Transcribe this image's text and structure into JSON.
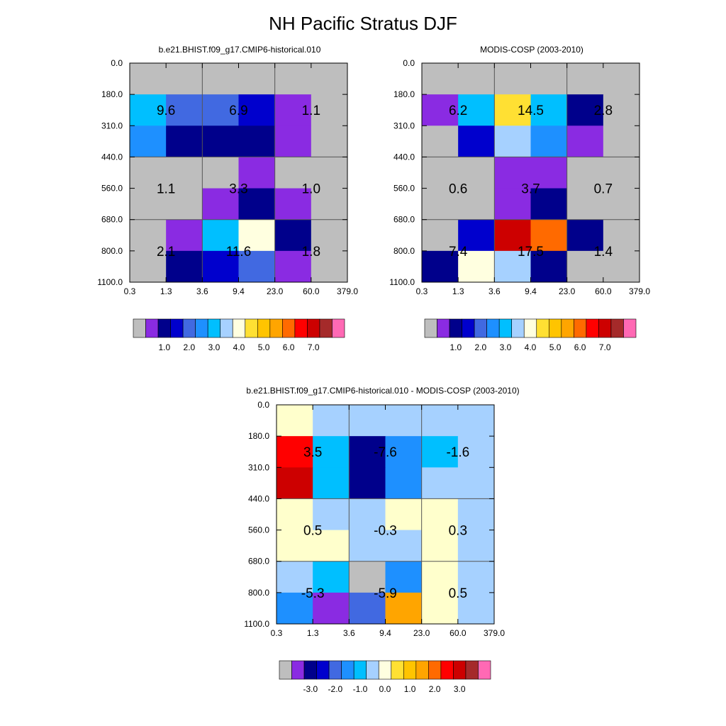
{
  "title": "NH Pacific Stratus DJF",
  "chart_data": [
    {
      "type": "heatmap",
      "title": "b.e21.BHIST.f09_g17.CMIP6-historical.010",
      "x_ticks": [
        "0.3",
        "1.3",
        "3.6",
        "9.4",
        "23.0",
        "60.0",
        "379.0"
      ],
      "y_ticks": [
        "0.0",
        "180.0",
        "310.0",
        "440.0",
        "560.0",
        "680.0",
        "800.0",
        "1100.0"
      ],
      "colors": [
        "#bebebe",
        "#bebebe",
        "#bebebe",
        "#bebebe",
        "#bebebe",
        "#bebebe",
        "#00bfff",
        "#4169e1",
        "#4169e1",
        "#0000cd",
        "#8a2be2",
        "#bebebe",
        "#1e90ff",
        "#00008b",
        "#00008b",
        "#00008b",
        "#8a2be2",
        "#bebebe",
        "#bebebe",
        "#bebebe",
        "#bebebe",
        "#8a2be2",
        "#bebebe",
        "#bebebe",
        "#bebebe",
        "#bebebe",
        "#8a2be2",
        "#00008b",
        "#8a2be2",
        "#bebebe",
        "#bebebe",
        "#8a2be2",
        "#00bfff",
        "#ffffe0",
        "#00008b",
        "#bebebe",
        "#bebebe",
        "#00008b",
        "#0000cd",
        "#4169e1",
        "#8a2be2",
        "#bebebe"
      ],
      "annotations": [
        {
          "row": 1,
          "col": 0,
          "text": "9.6"
        },
        {
          "row": 1,
          "col": 1,
          "text": "6.9"
        },
        {
          "row": 1,
          "col": 2,
          "text": "1.1"
        },
        {
          "row": 2,
          "col": 0,
          "text": "1.1"
        },
        {
          "row": 2,
          "col": 1,
          "text": "3.3"
        },
        {
          "row": 2,
          "col": 2,
          "text": "1.0"
        },
        {
          "row": 3,
          "col": 0,
          "text": "2.1"
        },
        {
          "row": 3,
          "col": 1,
          "text": "11.6"
        },
        {
          "row": 3,
          "col": 2,
          "text": "1.8"
        }
      ],
      "colorbar_labels": [
        "1.0",
        "2.0",
        "3.0",
        "4.0",
        "5.0",
        "6.0",
        "7.0"
      ]
    },
    {
      "type": "heatmap",
      "title": "MODIS-COSP (2003-2010)",
      "x_ticks": [
        "0.3",
        "1.3",
        "3.6",
        "9.4",
        "23.0",
        "60.0",
        "379.0"
      ],
      "y_ticks": [
        "0.0",
        "180.0",
        "310.0",
        "440.0",
        "560.0",
        "680.0",
        "800.0",
        "1100.0"
      ],
      "colors": [
        "#bebebe",
        "#bebebe",
        "#bebebe",
        "#bebebe",
        "#bebebe",
        "#bebebe",
        "#8a2be2",
        "#00bfff",
        "#ffe033",
        "#00bfff",
        "#00008b",
        "#bebebe",
        "#bebebe",
        "#0000cd",
        "#a6d1ff",
        "#1e90ff",
        "#8a2be2",
        "#bebebe",
        "#bebebe",
        "#bebebe",
        "#8a2be2",
        "#8a2be2",
        "#bebebe",
        "#bebebe",
        "#bebebe",
        "#bebebe",
        "#8a2be2",
        "#00008b",
        "#bebebe",
        "#bebebe",
        "#bebebe",
        "#0000cd",
        "#cd0000",
        "#ff6a00",
        "#00008b",
        "#bebebe",
        "#00008b",
        "#ffffe0",
        "#a6d1ff",
        "#00008b",
        "#bebebe",
        "#bebebe"
      ],
      "annotations": [
        {
          "row": 1,
          "col": 0,
          "text": "6.2"
        },
        {
          "row": 1,
          "col": 1,
          "text": "14.5"
        },
        {
          "row": 1,
          "col": 2,
          "text": "2.8"
        },
        {
          "row": 2,
          "col": 0,
          "text": "0.6"
        },
        {
          "row": 2,
          "col": 1,
          "text": "3.7"
        },
        {
          "row": 2,
          "col": 2,
          "text": "0.7"
        },
        {
          "row": 3,
          "col": 0,
          "text": "7.4"
        },
        {
          "row": 3,
          "col": 1,
          "text": "17.5"
        },
        {
          "row": 3,
          "col": 2,
          "text": "1.4"
        }
      ],
      "colorbar_labels": [
        "1.0",
        "2.0",
        "3.0",
        "4.0",
        "5.0",
        "6.0",
        "7.0"
      ]
    },
    {
      "type": "heatmap",
      "title": "b.e21.BHIST.f09_g17.CMIP6-historical.010 - MODIS-COSP (2003-2010)",
      "x_ticks": [
        "0.3",
        "1.3",
        "3.6",
        "9.4",
        "23.0",
        "60.0",
        "379.0"
      ],
      "y_ticks": [
        "0.0",
        "180.0",
        "310.0",
        "440.0",
        "560.0",
        "680.0",
        "800.0",
        "1100.0"
      ],
      "colors": [
        "#ffffcc",
        "#a6d1ff",
        "#a6d1ff",
        "#a6d1ff",
        "#a6d1ff",
        "#a6d1ff",
        "#ff0000",
        "#00bfff",
        "#00008b",
        "#1e90ff",
        "#00bfff",
        "#a6d1ff",
        "#cd0000",
        "#00bfff",
        "#00008b",
        "#1e90ff",
        "#a6d1ff",
        "#a6d1ff",
        "#ffffcc",
        "#a6d1ff",
        "#a6d1ff",
        "#ffffcc",
        "#ffffcc",
        "#a6d1ff",
        "#ffffcc",
        "#ffffcc",
        "#a6d1ff",
        "#a6d1ff",
        "#ffffcc",
        "#a6d1ff",
        "#a6d1ff",
        "#00bfff",
        "#bebebe",
        "#1e90ff",
        "#ffffcc",
        "#a6d1ff",
        "#1e90ff",
        "#8a2be2",
        "#4169e1",
        "#ffa500",
        "#ffffcc",
        "#a6d1ff"
      ],
      "annotations": [
        {
          "row": 1,
          "col": 0,
          "text": "3.5"
        },
        {
          "row": 1,
          "col": 1,
          "text": "-7.6"
        },
        {
          "row": 1,
          "col": 2,
          "text": "-1.6"
        },
        {
          "row": 2,
          "col": 0,
          "text": "0.5"
        },
        {
          "row": 2,
          "col": 1,
          "text": "-0.3"
        },
        {
          "row": 2,
          "col": 2,
          "text": "0.3"
        },
        {
          "row": 3,
          "col": 0,
          "text": "-5.3"
        },
        {
          "row": 3,
          "col": 1,
          "text": "-5.9"
        },
        {
          "row": 3,
          "col": 2,
          "text": "0.5"
        }
      ],
      "colorbar_labels": [
        "-3.0",
        "-2.0",
        "-1.0",
        "0.0",
        "1.0",
        "2.0",
        "3.0"
      ]
    }
  ],
  "colorbar_colors": [
    "#bebebe",
    "#8a2be2",
    "#00008b",
    "#0000cd",
    "#4169e1",
    "#1e90ff",
    "#00bfff",
    "#a6d1ff",
    "#ffffe0",
    "#ffe033",
    "#ffc400",
    "#ffa500",
    "#ff6a00",
    "#ff0000",
    "#cd0000",
    "#a52a2a",
    "#ff69b4"
  ]
}
